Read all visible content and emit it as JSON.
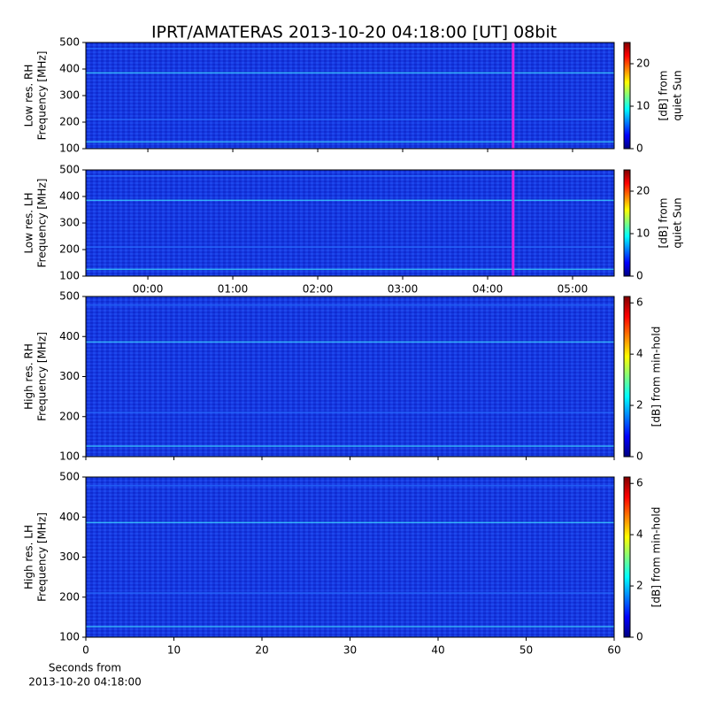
{
  "chart_data": [
    {
      "type": "heatmap",
      "title": "IPRT/AMATERAS 2013-10-20 04:18:00 [UT]   08bit",
      "ylabel": [
        "Low res. RH",
        "Frequency [MHz]"
      ],
      "xlim": [
        -0.73,
        5.49
      ],
      "ylim": [
        100,
        500
      ],
      "yticks": [
        100,
        200,
        300,
        400,
        500
      ],
      "marker": {
        "value": 4.3,
        "color": "#e020e0"
      },
      "colorbar": {
        "label": [
          "[dB] from",
          "quiet Sun"
        ],
        "clim": [
          0,
          25
        ],
        "cticks": [
          0,
          10,
          20
        ]
      }
    },
    {
      "type": "heatmap",
      "ylabel": [
        "Low res. LH",
        "Frequency [MHz]"
      ],
      "xlim": [
        -0.73,
        5.49
      ],
      "ylim": [
        100,
        500
      ],
      "yticks": [
        100,
        200,
        300,
        400,
        500
      ],
      "xticks": [
        {
          "value": 0,
          "label": "00:00"
        },
        {
          "value": 1,
          "label": "01:00"
        },
        {
          "value": 2,
          "label": "02:00"
        },
        {
          "value": 3,
          "label": "03:00"
        },
        {
          "value": 4,
          "label": "04:00"
        },
        {
          "value": 5,
          "label": "05:00"
        }
      ],
      "marker": {
        "value": 4.3,
        "color": "#e020e0"
      },
      "colorbar": {
        "label": [
          "[dB] from",
          "quiet Sun"
        ],
        "clim": [
          0,
          25
        ],
        "cticks": [
          0,
          10,
          20
        ]
      }
    },
    {
      "type": "heatmap",
      "ylabel": [
        "High res. RH",
        "Frequency [MHz]"
      ],
      "xlim": [
        0,
        60
      ],
      "ylim": [
        100,
        500
      ],
      "yticks": [
        100,
        200,
        300,
        400,
        500
      ],
      "colorbar": {
        "label": [
          "[dB] from min-hold"
        ],
        "clim": [
          0,
          6.25
        ],
        "cticks": [
          0,
          2,
          4,
          6
        ]
      }
    },
    {
      "type": "heatmap",
      "ylabel": [
        "High res. LH",
        "Frequency [MHz]"
      ],
      "xlim": [
        0,
        60
      ],
      "ylim": [
        100,
        500
      ],
      "yticks": [
        100,
        200,
        300,
        400,
        500
      ],
      "xticks": [
        0,
        10,
        20,
        30,
        40,
        50,
        60
      ],
      "xlabel": [
        "Seconds from",
        "2013-10-20 04:18:00"
      ],
      "colorbar": {
        "label": [
          "[dB] from min-hold"
        ],
        "clim": [
          0,
          6.25
        ],
        "cticks": [
          0,
          2,
          4,
          6
        ]
      }
    }
  ]
}
